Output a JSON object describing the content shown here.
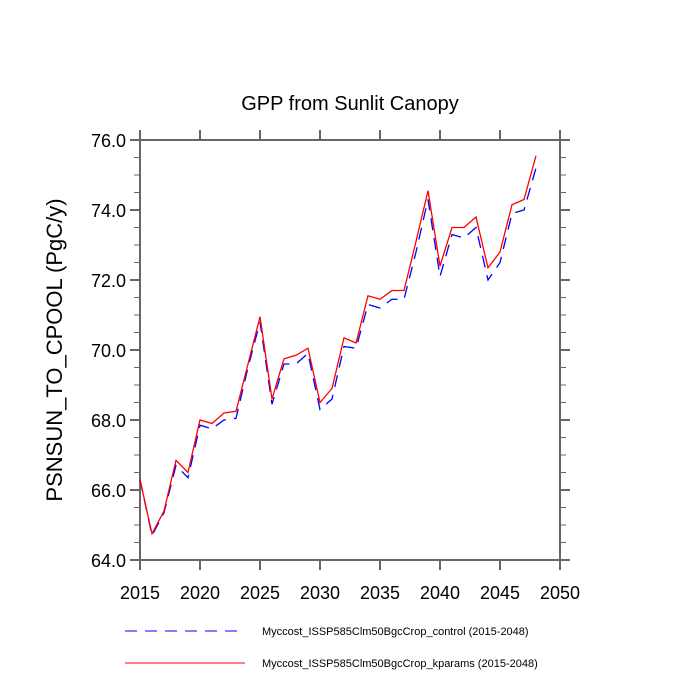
{
  "chart_data": {
    "type": "line",
    "title": "GPP from Sunlit Canopy",
    "xlabel": "",
    "ylabel": "PSNSUN_TO_CPOOL  (PgC/y)",
    "xlim": [
      2015,
      2050
    ],
    "ylim": [
      64,
      76
    ],
    "xticks": [
      "2015",
      "2020",
      "2025",
      "2030",
      "2035",
      "2040",
      "2045",
      "2050"
    ],
    "yticks": [
      "64.0",
      "66.0",
      "68.0",
      "70.0",
      "72.0",
      "74.0",
      "76.0"
    ],
    "grid": false,
    "legend_position": "bottom",
    "x": [
      2015,
      2016,
      2017,
      2018,
      2019,
      2020,
      2021,
      2022,
      2023,
      2024,
      2025,
      2026,
      2027,
      2028,
      2029,
      2030,
      2031,
      2032,
      2033,
      2034,
      2035,
      2036,
      2037,
      2038,
      2039,
      2040,
      2041,
      2042,
      2043,
      2044,
      2045,
      2046,
      2047,
      2048
    ],
    "series": [
      {
        "name": "Myccost_ISSP585Clm50BgcCrop_control (2015-2048)",
        "color": "#0000ff",
        "dash": true,
        "values": [
          66.3,
          64.7,
          65.35,
          66.7,
          66.35,
          67.85,
          67.75,
          68.0,
          68.05,
          69.5,
          70.8,
          68.45,
          69.6,
          69.6,
          69.9,
          68.3,
          68.6,
          70.1,
          70.05,
          71.3,
          71.2,
          71.45,
          71.45,
          72.8,
          74.3,
          72.1,
          73.3,
          73.2,
          73.5,
          72.0,
          72.5,
          73.9,
          74.0,
          75.2
        ]
      },
      {
        "name": "Myccost_ISSP585Clm50BgcCrop_kparams (2015-2048)",
        "color": "#ff0000",
        "dash": false,
        "values": [
          66.3,
          64.75,
          65.4,
          66.85,
          66.5,
          68.0,
          67.9,
          68.2,
          68.25,
          69.6,
          70.95,
          68.6,
          69.75,
          69.85,
          70.05,
          68.5,
          68.9,
          70.35,
          70.2,
          71.55,
          71.45,
          71.7,
          71.7,
          73.1,
          74.55,
          72.4,
          73.5,
          73.5,
          73.8,
          72.35,
          72.8,
          74.15,
          74.3,
          75.55
        ]
      }
    ]
  }
}
